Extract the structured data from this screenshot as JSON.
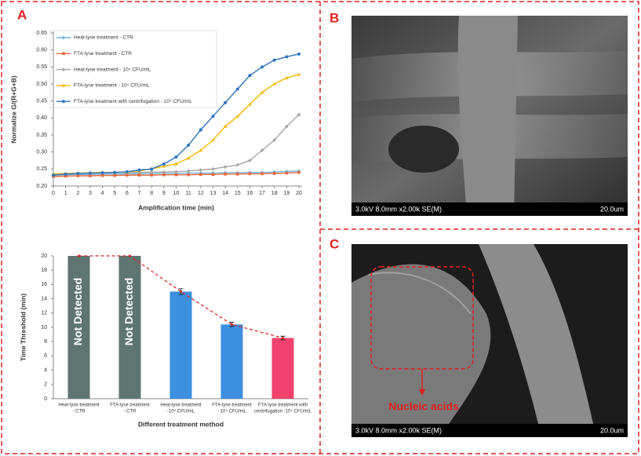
{
  "chart_data": [
    {
      "type": "line",
      "panel": "A",
      "ylabel": "Normalize G/(R+G+B)",
      "xlabel": "Amplification time (min)",
      "x": [
        0,
        1,
        2,
        3,
        4,
        5,
        6,
        7,
        8,
        9,
        10,
        11,
        12,
        13,
        14,
        15,
        16,
        17,
        18,
        19,
        20
      ],
      "xlim": [
        0,
        20
      ],
      "xticks": [
        0,
        1,
        2,
        3,
        4,
        5,
        6,
        7,
        8,
        9,
        10,
        11,
        12,
        13,
        14,
        15,
        16,
        17,
        18,
        19,
        20
      ],
      "ylim": [
        0.2,
        0.65
      ],
      "yticks": [
        {
          "value": 0.2,
          "label": "0.20"
        },
        0.25,
        {
          "value": 0.3,
          "label": "0.30"
        },
        0.35,
        {
          "value": 0.4,
          "label": "0.40"
        },
        0.45,
        {
          "value": 0.5,
          "label": "0.50"
        },
        0.55,
        {
          "value": 0.6,
          "label": "0.60"
        },
        0.65
      ],
      "series": [
        {
          "name": "Heat-lyse treatment - CTR",
          "color": "#6fb3e0",
          "marker": "diamond",
          "values": [
            0.232,
            0.233,
            0.234,
            0.234,
            0.235,
            0.235,
            0.236,
            0.236,
            0.237,
            0.237,
            0.237,
            0.238,
            0.238,
            0.238,
            0.239,
            0.239,
            0.24,
            0.24,
            0.241,
            0.243,
            0.244
          ]
        },
        {
          "name": "FTA-lyse treatment - CTR",
          "color": "#e8673c",
          "marker": "square",
          "values": [
            0.228,
            0.229,
            0.23,
            0.23,
            0.231,
            0.231,
            0.232,
            0.232,
            0.232,
            0.233,
            0.233,
            0.233,
            0.234,
            0.234,
            0.235,
            0.235,
            0.236,
            0.236,
            0.237,
            0.238,
            0.24
          ]
        },
        {
          "name": "Heat-lyse treatment - 10⁴ CFU/mL",
          "color": "#a5a5a5",
          "marker": "diamond",
          "values": [
            0.235,
            0.236,
            0.237,
            0.238,
            0.238,
            0.239,
            0.24,
            0.24,
            0.241,
            0.241,
            0.242,
            0.244,
            0.247,
            0.25,
            0.256,
            0.262,
            0.275,
            0.305,
            0.335,
            0.375,
            0.41
          ]
        },
        {
          "name": "FTA-lyse treatment - 10⁴ CFU/mL",
          "color": "#f5b800",
          "marker": "triangle",
          "values": [
            0.236,
            0.237,
            0.238,
            0.239,
            0.24,
            0.24,
            0.241,
            0.245,
            0.25,
            0.258,
            0.265,
            0.282,
            0.305,
            0.335,
            0.375,
            0.405,
            0.44,
            0.475,
            0.5,
            0.518,
            0.528
          ]
        },
        {
          "name": "FTA-lyse treatment with centrifugation - 10⁴ CFU/mL",
          "color": "#2e75c0",
          "marker": "circle",
          "values": [
            0.232,
            0.235,
            0.237,
            0.238,
            0.239,
            0.24,
            0.242,
            0.247,
            0.25,
            0.265,
            0.285,
            0.32,
            0.365,
            0.405,
            0.445,
            0.485,
            0.525,
            0.55,
            0.57,
            0.58,
            0.588
          ]
        }
      ]
    },
    {
      "type": "bar",
      "ylabel": "Time Threshold (min)",
      "xlabel": "Different treatment method",
      "categories": [
        [
          "Heat-lyse treatment",
          "- CTR"
        ],
        [
          "FTA-lyse treatment",
          "- CTR"
        ],
        [
          "Heat-lyse treatment",
          "-10⁴ CFU/mL"
        ],
        [
          "FTA-lyse treatment",
          "- 10⁴ CFU/mL"
        ],
        [
          "FTA-lyse treatment with",
          "centrifugation -10⁴ CFU/mL"
        ]
      ],
      "values": [
        20,
        20,
        15,
        10.4,
        8.5
      ],
      "errors": [
        null,
        null,
        0.4,
        0.3,
        0.25
      ],
      "colors": [
        "#5f7571",
        "#5f7571",
        "#3d8fe0",
        "#3d8fe0",
        "#f0426c"
      ],
      "annotations": [
        "Not Detected",
        "Not Detected"
      ],
      "trend_color": "#e02020",
      "ylim": [
        0,
        20
      ],
      "yticks": [
        0,
        2,
        4,
        6,
        8,
        10,
        12,
        14,
        16,
        18,
        20
      ]
    }
  ],
  "panel_labels": [
    "A",
    "B",
    "C"
  ],
  "images": [
    {
      "caption_left": "3.0kV 8.0mm x2.00k SE(M)",
      "caption_right": "20.0um"
    },
    {
      "caption_left": "3.0kV 8.0mm x2.00k SE(M)",
      "caption_right": "20.0um",
      "annotation": "Nucleic acids"
    }
  ]
}
